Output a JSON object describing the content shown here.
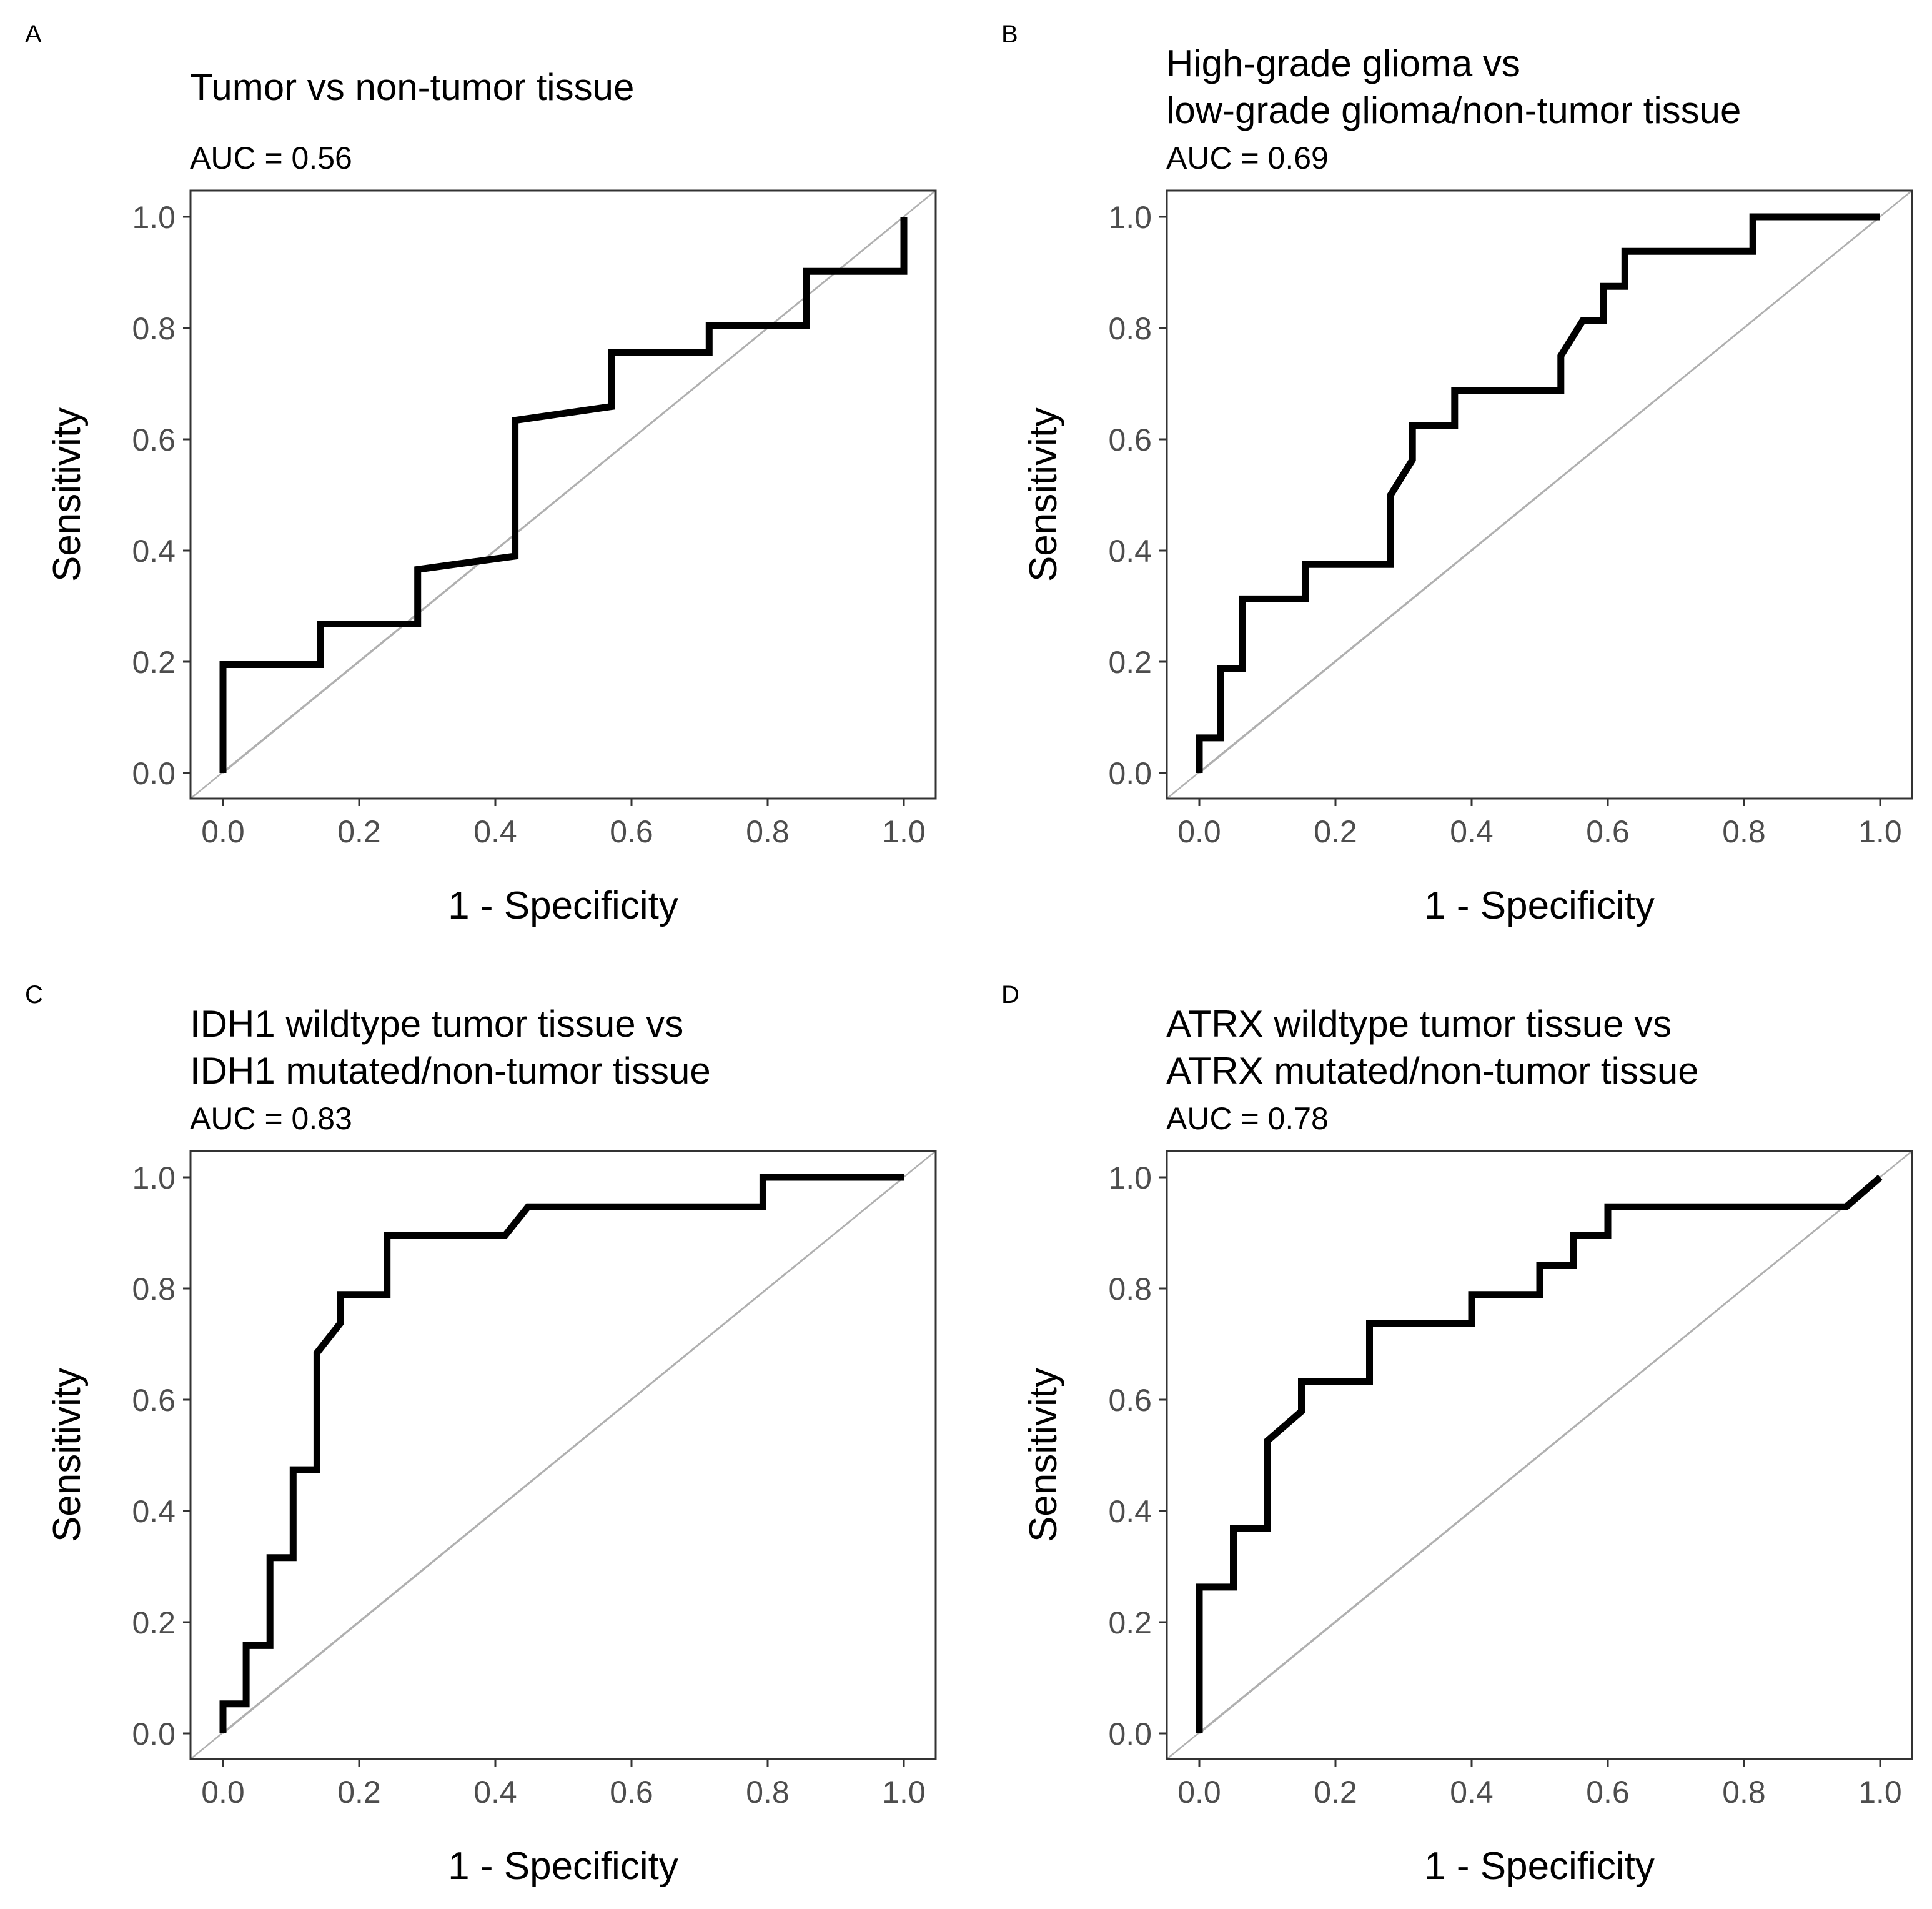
{
  "chart_data": [
    {
      "type": "line",
      "panel": "A",
      "title": [
        "Tumor vs non-tumor tissue"
      ],
      "subtitle": "AUC = 0.56",
      "xlabel": "1 - Specificity",
      "ylabel": "Sensitivity",
      "xlim": [
        0,
        1
      ],
      "ylim": [
        0,
        1
      ],
      "ticks": [
        "0.0",
        "0.2",
        "0.4",
        "0.6",
        "0.8",
        "1.0"
      ],
      "reference_line": "diagonal",
      "x": [
        0,
        0,
        0.143,
        0.143,
        0.286,
        0.286,
        0.429,
        0.429,
        0.571,
        0.571,
        0.714,
        0.714,
        0.857,
        0.857,
        1.0,
        1.0
      ],
      "y": [
        0,
        0.195,
        0.195,
        0.268,
        0.268,
        0.366,
        0.39,
        0.634,
        0.659,
        0.756,
        0.756,
        0.805,
        0.805,
        0.902,
        0.902,
        1.0
      ]
    },
    {
      "type": "line",
      "panel": "B",
      "title": [
        "High-grade glioma vs",
        "low-grade glioma/non-tumor tissue"
      ],
      "subtitle": "AUC = 0.69",
      "xlabel": "1 - Specificity",
      "ylabel": "Sensitivity",
      "xlim": [
        0,
        1
      ],
      "ylim": [
        0,
        1
      ],
      "ticks": [
        "0.0",
        "0.2",
        "0.4",
        "0.6",
        "0.8",
        "1.0"
      ],
      "reference_line": "diagonal",
      "x": [
        0,
        0,
        0.031,
        0.031,
        0.063,
        0.063,
        0.156,
        0.156,
        0.281,
        0.281,
        0.313,
        0.313,
        0.375,
        0.375,
        0.531,
        0.531,
        0.563,
        0.594,
        0.594,
        0.625,
        0.625,
        0.813,
        0.813,
        1.0
      ],
      "y": [
        0,
        0.063,
        0.063,
        0.188,
        0.188,
        0.313,
        0.313,
        0.375,
        0.375,
        0.5,
        0.563,
        0.625,
        0.625,
        0.688,
        0.688,
        0.75,
        0.813,
        0.813,
        0.875,
        0.875,
        0.938,
        0.938,
        1.0,
        1.0
      ]
    },
    {
      "type": "line",
      "panel": "C",
      "title": [
        "IDH1 wildtype tumor tissue vs",
        "IDH1 mutated/non-tumor tissue"
      ],
      "subtitle": "AUC = 0.83",
      "xlabel": "1 - Specificity",
      "ylabel": "Sensitivity",
      "xlim": [
        0,
        1
      ],
      "ylim": [
        0,
        1
      ],
      "ticks": [
        "0.0",
        "0.2",
        "0.4",
        "0.6",
        "0.8",
        "1.0"
      ],
      "reference_line": "diagonal",
      "x": [
        0,
        0,
        0.034,
        0.034,
        0.069,
        0.069,
        0.103,
        0.103,
        0.138,
        0.138,
        0.172,
        0.172,
        0.241,
        0.241,
        0.414,
        0.448,
        0.793,
        0.793,
        1.0
      ],
      "y": [
        0,
        0.053,
        0.053,
        0.158,
        0.158,
        0.316,
        0.316,
        0.474,
        0.474,
        0.684,
        0.737,
        0.789,
        0.789,
        0.895,
        0.895,
        0.947,
        0.947,
        1.0,
        1.0
      ]
    },
    {
      "type": "line",
      "panel": "D",
      "title": [
        "ATRX wildtype tumor tissue vs",
        "ATRX mutated/non-tumor tissue"
      ],
      "subtitle": "AUC = 0.78",
      "xlabel": "1 - Specificity",
      "ylabel": "Sensitivity",
      "xlim": [
        0,
        1
      ],
      "ylim": [
        0,
        1
      ],
      "ticks": [
        "0.0",
        "0.2",
        "0.4",
        "0.6",
        "0.8",
        "1.0"
      ],
      "reference_line": "diagonal",
      "x": [
        0,
        0,
        0.05,
        0.05,
        0.1,
        0.1,
        0.15,
        0.15,
        0.25,
        0.25,
        0.4,
        0.4,
        0.5,
        0.5,
        0.55,
        0.55,
        0.6,
        0.6,
        0.95,
        1.0
      ],
      "y": [
        0,
        0.263,
        0.263,
        0.368,
        0.368,
        0.526,
        0.579,
        0.632,
        0.632,
        0.737,
        0.737,
        0.789,
        0.789,
        0.842,
        0.842,
        0.895,
        0.895,
        0.947,
        0.947,
        1.0
      ]
    }
  ]
}
